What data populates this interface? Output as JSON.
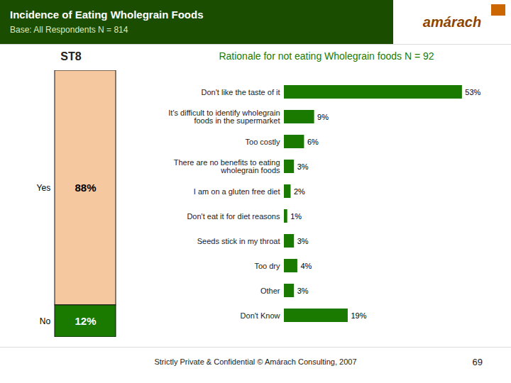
{
  "chart_data": [
    {
      "type": "bar",
      "stacked": true,
      "title": "Incidence of Eating Wholegrain Foods",
      "subtitle": "Base: All Respondents N = 814",
      "annotations": [
        "ST8",
        "amárach",
        "69",
        "Strictly Private & Confidential © Amárach Consulting, 2007"
      ],
      "categories": [
        null
      ],
      "series": [
        {
          "name": "Yes",
          "color": "#f5c8a0",
          "values": [
            88
          ],
          "value_labels": [
            "88%"
          ]
        },
        {
          "name": "No",
          "color": "#1a7a00",
          "values": [
            12
          ],
          "value_labels": [
            "12%"
          ]
        }
      ],
      "ylim": [
        0,
        100
      ],
      "data_labels": true,
      "tick_labels": false
    },
    {
      "type": "bar",
      "orientation": "horizontal",
      "title": "Rationale for not eating Wholegrain foods  N = 92",
      "categories": [
        "Don't like the taste of it",
        "It's difficult to identify wholegrain\nfoods in the supermarket",
        "Too costly",
        "There are no benefits to eating\nwholegrain foods",
        "I am on a gluten free diet",
        "Don't eat it for diet reasons",
        "Seeds stick in my throat",
        "Too dry",
        "Other",
        "Don't Know"
      ],
      "values": [
        53,
        9,
        6,
        3,
        2,
        1,
        3,
        4,
        3,
        19
      ],
      "value_labels": [
        "53%",
        "9%",
        "6%",
        "3%",
        "2%",
        "1%",
        "3%",
        "4%",
        "3%",
        "19%"
      ],
      "color": "#1a7a00",
      "xlim": [
        0,
        60
      ],
      "data_labels": true,
      "tick_labels": "y"
    }
  ]
}
